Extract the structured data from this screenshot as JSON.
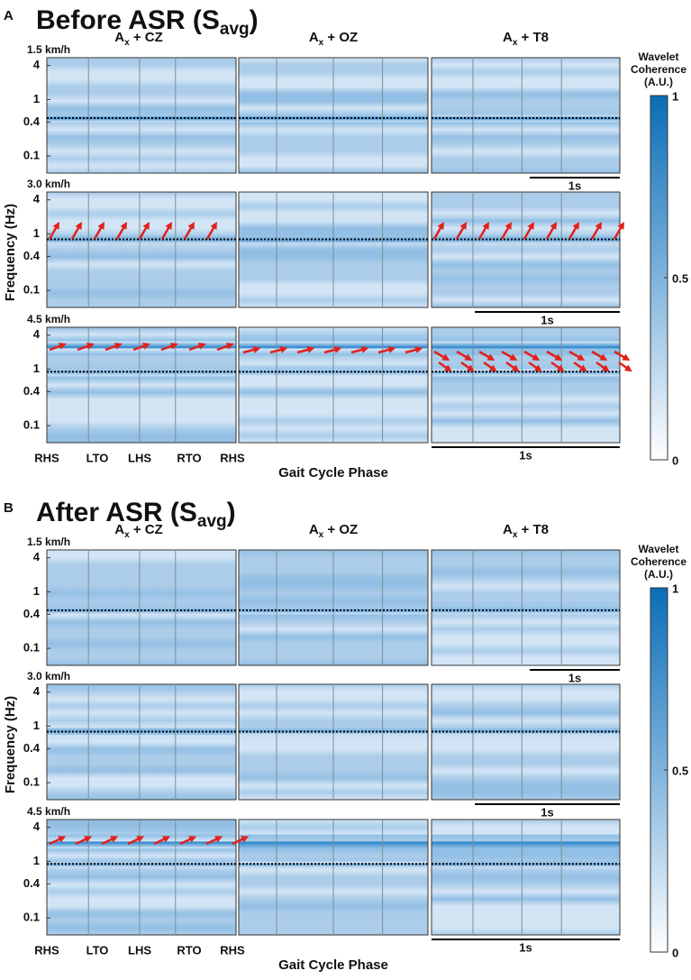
{
  "panels": [
    {
      "label": "A",
      "title": {
        "main": "Before ASR (S",
        "sub": "avg",
        "end": ")"
      },
      "columns": [
        {
          "base": "A",
          "sub": "x",
          "rest": " + CZ"
        },
        {
          "base": "A",
          "sub": "x",
          "rest": " + OZ"
        },
        {
          "base": "A",
          "sub": "x",
          "rest": " + T8"
        }
      ],
      "rows": [
        {
          "speed": "1.5 km/h",
          "dotted_line_hz": 0.47,
          "scale_bar": "1s"
        },
        {
          "speed": "3.0 km/h",
          "dotted_line_hz": 0.8,
          "scale_bar": "1s"
        },
        {
          "speed": "4.5 km/h",
          "dotted_line_hz": 0.9,
          "scale_bar": "1s"
        }
      ],
      "x_ticks": [
        "RHS",
        "LTO",
        "LHS",
        "RTO",
        "RHS"
      ],
      "x_label": "Gait Cycle Phase",
      "y_label": "Frequency (Hz)",
      "colorbar": {
        "title": [
          "Wavelet",
          "Coherence",
          "(A.U.)"
        ],
        "ticks": [
          1,
          0.5,
          0
        ],
        "lim": [
          0,
          1
        ]
      }
    },
    {
      "label": "B",
      "title": {
        "main": "After ASR (S",
        "sub": "avg",
        "end": ")"
      },
      "columns": [
        {
          "base": "A",
          "sub": "x",
          "rest": " + CZ"
        },
        {
          "base": "A",
          "sub": "x",
          "rest": " + OZ"
        },
        {
          "base": "A",
          "sub": "x",
          "rest": " + T8"
        }
      ],
      "rows": [
        {
          "speed": "1.5 km/h",
          "dotted_line_hz": 0.47,
          "scale_bar": "1s"
        },
        {
          "speed": "3.0 km/h",
          "dotted_line_hz": 0.8,
          "scale_bar": "1s"
        },
        {
          "speed": "4.5 km/h",
          "dotted_line_hz": 0.9,
          "scale_bar": "1s"
        }
      ],
      "x_ticks": [
        "RHS",
        "LTO",
        "LHS",
        "RTO",
        "RHS"
      ],
      "x_label": "Gait Cycle Phase",
      "y_label": "Frequency (Hz)",
      "colorbar": {
        "title": [
          "Wavelet",
          "Coherence",
          "(A.U.)"
        ],
        "ticks": [
          1,
          0.5,
          0
        ],
        "lim": [
          0,
          1
        ]
      }
    }
  ],
  "frequency_axis": {
    "ticks": [
      4,
      1,
      0.4,
      0.1
    ],
    "lim": [
      0.05,
      5.5
    ],
    "log": true
  }
}
